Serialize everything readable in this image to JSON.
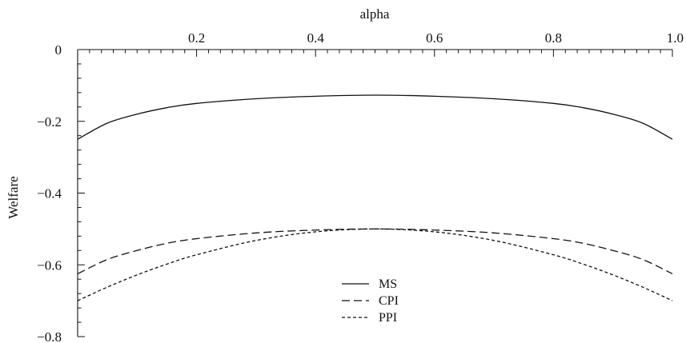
{
  "chart_data": {
    "type": "line",
    "title": "",
    "xlabel": "alpha",
    "ylabel": "Welfare",
    "xlim": [
      0,
      1.0
    ],
    "ylim": [
      -0.8,
      0
    ],
    "x_ticks": [
      0.2,
      0.4,
      0.6,
      0.8,
      1.0
    ],
    "x_tick_labels": [
      "0.2",
      "0.4",
      "0.6",
      "0.8",
      "1.0"
    ],
    "y_ticks": [
      0,
      -0.2,
      -0.4,
      -0.6,
      -0.8
    ],
    "y_tick_labels": [
      "0",
      "−0.2",
      "−0.4",
      "−0.6",
      "−0.8"
    ],
    "x_axis_position": "top",
    "grid": false,
    "legend_position": "bottom-center",
    "series": [
      {
        "name": "MS",
        "style": "solid",
        "x": [
          0.0,
          0.05,
          0.1,
          0.15,
          0.2,
          0.3,
          0.4,
          0.5,
          0.6,
          0.7,
          0.8,
          0.85,
          0.9,
          0.95,
          1.0
        ],
        "y": [
          -0.25,
          -0.205,
          -0.18,
          -0.162,
          -0.15,
          -0.137,
          -0.13,
          -0.127,
          -0.13,
          -0.137,
          -0.15,
          -0.162,
          -0.18,
          -0.205,
          -0.25
        ]
      },
      {
        "name": "CPI",
        "style": "dashed",
        "x": [
          0.0,
          0.05,
          0.1,
          0.15,
          0.2,
          0.3,
          0.4,
          0.5,
          0.6,
          0.7,
          0.8,
          0.85,
          0.9,
          0.95,
          1.0
        ],
        "y": [
          -0.625,
          -0.585,
          -0.56,
          -0.54,
          -0.527,
          -0.511,
          -0.503,
          -0.5,
          -0.503,
          -0.511,
          -0.527,
          -0.54,
          -0.56,
          -0.585,
          -0.625
        ]
      },
      {
        "name": "PPI",
        "style": "dotted",
        "x": [
          0.0,
          0.05,
          0.1,
          0.15,
          0.2,
          0.3,
          0.4,
          0.5,
          0.6,
          0.7,
          0.8,
          0.85,
          0.9,
          0.95,
          1.0
        ],
        "y": [
          -0.7,
          -0.662,
          -0.628,
          -0.598,
          -0.572,
          -0.532,
          -0.508,
          -0.5,
          -0.508,
          -0.532,
          -0.572,
          -0.598,
          -0.628,
          -0.662,
          -0.7
        ]
      }
    ]
  }
}
